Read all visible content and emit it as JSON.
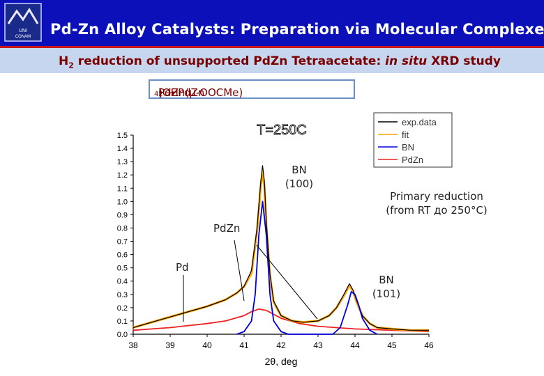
{
  "header": {
    "title": "Pd-Zn Alloy Catalysts: Preparation via Molecular Complexes",
    "logo_text_1": "UNI",
    "logo_text_2": "CONAM",
    "bg_color": "#0b10b8"
  },
  "subtitle": {
    "part1": "H",
    "part1_sub": "2",
    "part2": " reduction of unsupported PdZn Tetraacetate: ",
    "part3_italic": "in situ",
    "part4": " XRD study"
  },
  "formula": {
    "part1": "PdZn(μ-OOCMe)",
    "sub1": "4",
    "part2": "(OH",
    "sub2": "2",
    "part3": ")  →  PdZn"
  },
  "annotations": {
    "bn100_line1": "BN",
    "bn100_line2": "(100)",
    "pdzn": "PdZn",
    "pd": "Pd",
    "bn101_line1": "BN",
    "bn101_line2": "(101)",
    "primary_line1": "Primary reduction",
    "primary_line2": "(from RT до 250°C)"
  },
  "chart_data": {
    "type": "line",
    "title": "T=250C",
    "xlabel": "2θ, deg",
    "ylabel": "",
    "xlim": [
      38,
      46
    ],
    "ylim": [
      0,
      1.5
    ],
    "x_ticks": [
      "38",
      "39",
      "40",
      "41",
      "42",
      "43",
      "44",
      "45",
      "46"
    ],
    "y_ticks": [
      "0.0",
      "0.1",
      "0.2",
      "0.3",
      "0.4",
      "0.5",
      "0.6",
      "0.7",
      "0.8",
      "0.9",
      "1.0",
      "1.1",
      "1.2",
      "1.3",
      "1.4",
      "1.5"
    ],
    "legend_position": "top-right",
    "legend": [
      {
        "name": "exp.data",
        "color": "#000000"
      },
      {
        "name": "fit",
        "color": "#ffa500"
      },
      {
        "name": "BN",
        "color": "#0000dd"
      },
      {
        "name": "PdZn",
        "color": "#ee2222"
      }
    ],
    "series": [
      {
        "name": "exp.data",
        "color": "#000000",
        "x": [
          38.0,
          38.5,
          39.0,
          39.5,
          40.0,
          40.5,
          40.8,
          41.0,
          41.2,
          41.35,
          41.45,
          41.5,
          41.55,
          41.6,
          41.7,
          41.8,
          42.0,
          42.3,
          42.6,
          43.0,
          43.3,
          43.5,
          43.7,
          43.85,
          43.95,
          44.05,
          44.2,
          44.4,
          44.6,
          45.0,
          45.5,
          46.0
        ],
        "y": [
          0.05,
          0.09,
          0.13,
          0.17,
          0.21,
          0.26,
          0.31,
          0.36,
          0.48,
          0.8,
          1.15,
          1.27,
          1.15,
          0.85,
          0.45,
          0.25,
          0.14,
          0.1,
          0.09,
          0.1,
          0.14,
          0.2,
          0.3,
          0.38,
          0.33,
          0.25,
          0.14,
          0.08,
          0.05,
          0.04,
          0.03,
          0.03
        ]
      },
      {
        "name": "fit",
        "color": "#ffa500",
        "x": [
          38.0,
          38.5,
          39.0,
          39.5,
          40.0,
          40.5,
          40.8,
          41.0,
          41.2,
          41.35,
          41.45,
          41.5,
          41.55,
          41.6,
          41.7,
          41.8,
          42.0,
          42.3,
          42.6,
          43.0,
          43.3,
          43.5,
          43.7,
          43.85,
          43.95,
          44.05,
          44.2,
          44.4,
          44.6,
          45.0,
          45.5,
          46.0
        ],
        "y": [
          0.05,
          0.09,
          0.13,
          0.17,
          0.21,
          0.26,
          0.31,
          0.36,
          0.46,
          0.78,
          1.12,
          1.22,
          1.12,
          0.82,
          0.44,
          0.24,
          0.14,
          0.1,
          0.09,
          0.1,
          0.14,
          0.2,
          0.29,
          0.37,
          0.32,
          0.24,
          0.14,
          0.08,
          0.05,
          0.04,
          0.03,
          0.03
        ]
      },
      {
        "name": "BN",
        "color": "#0000dd",
        "x": [
          40.8,
          41.0,
          41.2,
          41.3,
          41.4,
          41.5,
          41.6,
          41.7,
          41.8,
          42.0,
          42.2,
          43.4,
          43.6,
          43.8,
          43.9,
          44.0,
          44.1,
          44.2,
          44.4,
          44.6
        ],
        "y": [
          0.0,
          0.02,
          0.1,
          0.3,
          0.75,
          1.0,
          0.75,
          0.3,
          0.1,
          0.02,
          0.0,
          0.0,
          0.05,
          0.22,
          0.32,
          0.3,
          0.22,
          0.12,
          0.03,
          0.0
        ]
      },
      {
        "name": "PdZn",
        "color": "#ee2222",
        "x": [
          38.0,
          39.0,
          40.0,
          40.5,
          41.0,
          41.2,
          41.4,
          41.6,
          41.8,
          42.0,
          42.5,
          43.0,
          44.0,
          45.0,
          46.0
        ],
        "y": [
          0.03,
          0.05,
          0.08,
          0.1,
          0.14,
          0.17,
          0.19,
          0.18,
          0.15,
          0.12,
          0.08,
          0.06,
          0.04,
          0.03,
          0.02
        ]
      }
    ]
  }
}
